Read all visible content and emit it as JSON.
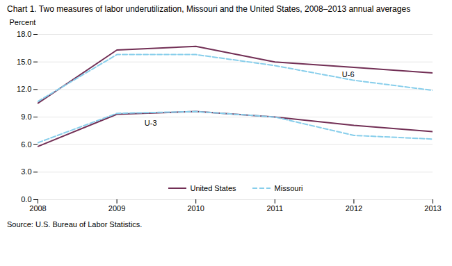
{
  "chart_data": {
    "type": "line",
    "title": "Chart 1. Two measures of labor underutilization, Missouri  and the United States, 2008–2013  annual averages",
    "ylabel": "Percent",
    "source": "Source: U.S. Bureau of Labor Statistics.",
    "x": [
      2008,
      2009,
      2010,
      2011,
      2012,
      2013
    ],
    "series": [
      {
        "name": "United States",
        "color": "#722F55",
        "line_style": "solid",
        "values": [
          10.5,
          16.3,
          16.7,
          15.0,
          14.4,
          13.8
        ]
      },
      {
        "name": "Missouri",
        "color": "#87CEEB",
        "line_style": "dashed",
        "values": [
          10.7,
          15.8,
          15.8,
          14.6,
          13.0,
          11.9
        ]
      },
      {
        "name": "United States",
        "color": "#722F55",
        "line_style": "solid",
        "values": [
          5.8,
          9.3,
          9.6,
          9.0,
          8.1,
          7.4
        ]
      },
      {
        "name": "Missouri",
        "color": "#87CEEB",
        "line_style": "dashed",
        "values": [
          6.2,
          9.4,
          9.6,
          9.0,
          7.0,
          6.6
        ]
      }
    ],
    "annotations": [
      {
        "text": "U-6",
        "x": 2011.85,
        "y": 13.65
      },
      {
        "text": "U-3",
        "x": 2009.35,
        "y": 8.35
      }
    ],
    "xlim": [
      2008,
      2013
    ],
    "xticks": [
      2008,
      2009,
      2010,
      2011,
      2012,
      2013
    ],
    "ylim": [
      0.0,
      18.0
    ],
    "yticks": [
      {
        "value": 0.0,
        "label": "0.0"
      },
      {
        "value": 3.0,
        "label": "3.0"
      },
      {
        "value": 6.0,
        "label": "6.0"
      },
      {
        "value": 9.0,
        "label": "9.0"
      },
      {
        "value": 12.0,
        "label": "12.0"
      },
      {
        "value": 15.0,
        "label": "15.0"
      },
      {
        "value": 18.0,
        "label": "18.0"
      }
    ],
    "grid": true,
    "legend": "lower center"
  }
}
